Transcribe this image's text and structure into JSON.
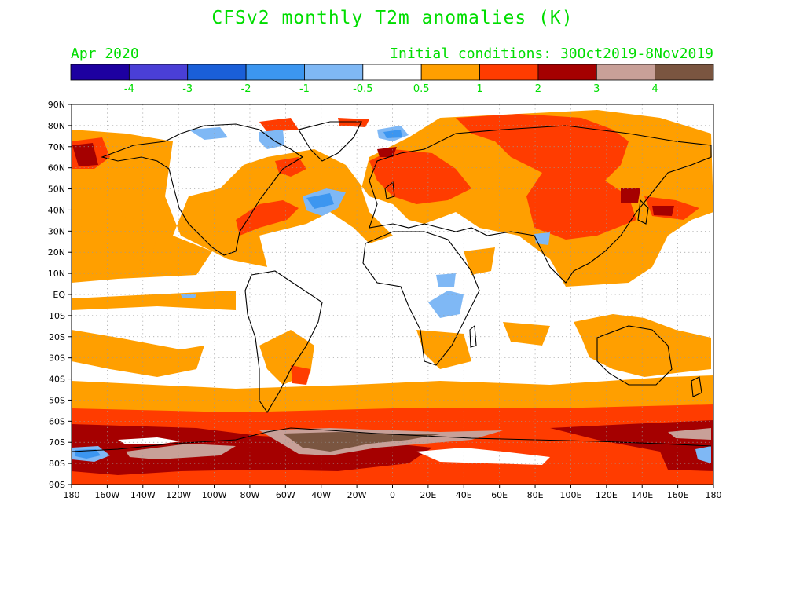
{
  "title": "CFSv2 monthly T2m anomalies (K)",
  "period_label": "Apr 2020",
  "init_label": "Initial conditions: 30Oct2019-8Nov2019",
  "colorbar": {
    "colors": [
      "#1d00a0",
      "#4a3fd6",
      "#1a5fd8",
      "#3c96f0",
      "#7fb8f5",
      "#ffffff",
      "#ff9f00",
      "#ff3c00",
      "#a50000",
      "#c8a098",
      "#7a5540"
    ],
    "labels": [
      "-4",
      "-3",
      "-2",
      "-1",
      "-0.5",
      "0.5",
      "1",
      "2",
      "3",
      "4"
    ]
  },
  "axes": {
    "lon_labels": [
      "180",
      "160W",
      "140W",
      "120W",
      "100W",
      "80W",
      "60W",
      "40W",
      "20W",
      "0",
      "20E",
      "40E",
      "60E",
      "80E",
      "100E",
      "120E",
      "140E",
      "160E",
      "180"
    ],
    "lat_labels": [
      "90N",
      "80N",
      "70N",
      "60N",
      "50N",
      "40N",
      "30N",
      "20N",
      "10N",
      "EQ",
      "10S",
      "20S",
      "30S",
      "40S",
      "50S",
      "60S",
      "70S",
      "80S",
      "90S"
    ]
  }
}
